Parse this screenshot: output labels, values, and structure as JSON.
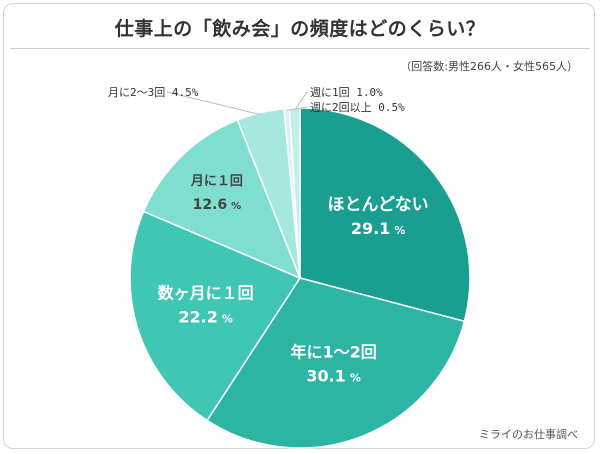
{
  "header": {
    "title": "仕事上の「飲み会」の頻度はどのくらい？",
    "note": "（回答数:男性266人・女性565人）"
  },
  "footer": {
    "credit": "ミライのお仕事調べ"
  },
  "chart_data": {
    "type": "pie",
    "slices": [
      {
        "label": "ほとんどない",
        "value": 29.1,
        "value_text": "29.1",
        "unit": "%",
        "color": "#1a9e8f",
        "text_color": "#ffffff"
      },
      {
        "label": "年に1〜2回",
        "value": 30.1,
        "value_text": "30.1",
        "unit": "%",
        "color": "#2cb5a3",
        "text_color": "#ffffff"
      },
      {
        "label": "数ヶ月に１回",
        "value": 22.2,
        "value_text": "22.2",
        "unit": "%",
        "color": "#3fc6b4",
        "text_color": "#ffffff"
      },
      {
        "label": "月に１回",
        "value": 12.6,
        "value_text": "12.6",
        "unit": "%",
        "color": "#7fded0",
        "text_color": "#444444"
      },
      {
        "label": "月に2〜3回",
        "value": 4.5,
        "value_text": "4.5%",
        "unit": "",
        "color": "#a6e8de",
        "text_color": "#444444"
      },
      {
        "label": "週に2回以上",
        "value": 0.5,
        "value_text": "0.5%",
        "unit": "",
        "color": "#d8f4f0",
        "text_color": "#444444"
      },
      {
        "label": "週に1回",
        "value": 1.0,
        "value_text": "1.0%",
        "unit": "",
        "color": "#c2efe8",
        "text_color": "#444444"
      }
    ]
  }
}
